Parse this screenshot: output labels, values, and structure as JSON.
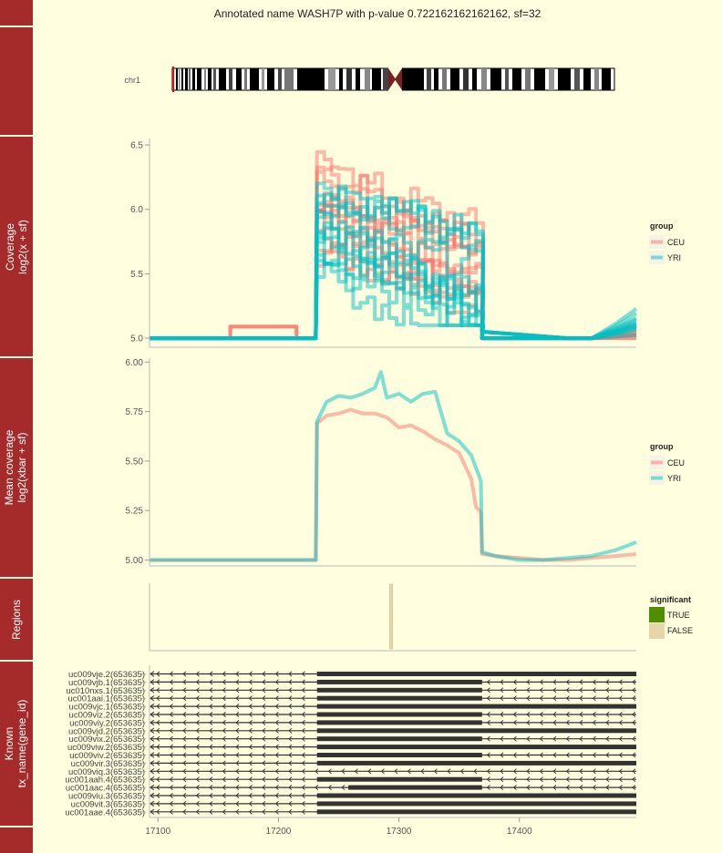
{
  "title": "Annotated name WASH7P with p-value 0.722162162162162, sf=32",
  "chromosome": {
    "label": "chr1"
  },
  "panels": {
    "coverage": {
      "strip": [
        "Coverage",
        "log2(x + sf)"
      ]
    },
    "mean": {
      "strip": [
        "Mean coverage",
        "log2(xbar + sf)"
      ]
    },
    "regions": {
      "strip": [
        "Regions"
      ]
    },
    "known": {
      "strip": [
        "Known",
        "tx_name(gene_id)"
      ]
    }
  },
  "legends": {
    "group": {
      "title": "group",
      "items": [
        {
          "label": "CEU",
          "color": "#f8766d"
        },
        {
          "label": "YRI",
          "color": "#00bfc4"
        }
      ]
    },
    "significant": {
      "title": "significant",
      "items": [
        {
          "label": "TRUE",
          "color": "#4d8f00"
        },
        {
          "label": "FALSE",
          "color": "#e8d5a8"
        }
      ]
    }
  },
  "colors": {
    "strip": "#a52a2a",
    "background": "#fffedf",
    "CEU": "#f8766d",
    "YRI": "#00bfc4"
  },
  "chart_data": [
    {
      "type": "line",
      "panel": "Coverage",
      "xlabel": "",
      "ylabel": "log2(x + sf)",
      "xlim": [
        17093,
        17497
      ],
      "ylim": [
        4.93,
        6.55
      ],
      "yticks": [
        "5.0",
        "5.5",
        "6.0",
        "6.5"
      ],
      "series_groups": [
        {
          "name": "CEU",
          "count": 12,
          "value_ranges": {
            "before": [
              5.0,
              5.09
            ],
            "region_17232_17369": [
              5.2,
              6.5
            ],
            "after": [
              5.0,
              5.1
            ]
          }
        },
        {
          "name": "YRI",
          "count": 12,
          "value_ranges": {
            "before": [
              5.0,
              5.0
            ],
            "region_17232_17369": [
              5.1,
              6.3
            ],
            "after": [
              5.0,
              5.25
            ]
          }
        }
      ]
    },
    {
      "type": "line",
      "panel": "Mean coverage",
      "xlabel": "",
      "ylabel": "log2(xbar + sf)",
      "xlim": [
        17093,
        17497
      ],
      "ylim": [
        4.97,
        6.02
      ],
      "yticks": [
        "5.00",
        "5.25",
        "5.50",
        "5.75",
        "6.00"
      ],
      "series": [
        {
          "name": "CEU",
          "x": [
            17093,
            17231,
            17232,
            17240,
            17250,
            17260,
            17270,
            17280,
            17290,
            17300,
            17310,
            17320,
            17330,
            17340,
            17350,
            17360,
            17364,
            17368,
            17369,
            17380,
            17400,
            17420,
            17440,
            17460,
            17480,
            17497
          ],
          "y": [
            5.0,
            5.0,
            5.69,
            5.73,
            5.74,
            5.76,
            5.74,
            5.74,
            5.72,
            5.67,
            5.68,
            5.65,
            5.61,
            5.58,
            5.54,
            5.41,
            5.27,
            5.24,
            5.03,
            5.02,
            5.01,
            5.0,
            5.0,
            5.01,
            5.02,
            5.03
          ]
        },
        {
          "name": "YRI",
          "x": [
            17093,
            17231,
            17232,
            17240,
            17250,
            17260,
            17270,
            17280,
            17285,
            17290,
            17300,
            17310,
            17320,
            17330,
            17340,
            17350,
            17360,
            17368,
            17369,
            17380,
            17400,
            17420,
            17440,
            17460,
            17480,
            17497
          ],
          "y": [
            5.0,
            5.0,
            5.7,
            5.8,
            5.83,
            5.82,
            5.84,
            5.87,
            5.95,
            5.82,
            5.84,
            5.8,
            5.84,
            5.85,
            5.64,
            5.6,
            5.53,
            5.4,
            5.04,
            5.02,
            5.0,
            5.0,
            5.01,
            5.02,
            5.05,
            5.09
          ]
        }
      ]
    },
    {
      "type": "bar",
      "panel": "Regions",
      "regions": [
        {
          "start": 17293,
          "end": 17294,
          "significant": "FALSE"
        }
      ]
    },
    {
      "type": "table",
      "panel": "Known",
      "xlim": [
        17093,
        17497
      ],
      "xticks": [
        17100,
        17200,
        17300,
        17400
      ],
      "transcripts": [
        {
          "name": "uc009vje.2(653635)",
          "thick": [
            [
              17232,
              17497
            ]
          ]
        },
        {
          "name": "uc009vjb.1(653635)",
          "thick": [
            [
              17232,
              17369
            ]
          ]
        },
        {
          "name": "uc010nxs.1(653635)",
          "thick": [
            [
              17232,
              17369
            ]
          ]
        },
        {
          "name": "uc001aai.1(653635)",
          "thick": [
            [
              17232,
              17369
            ]
          ]
        },
        {
          "name": "uc009vjc.1(653635)",
          "thick": [
            [
              17232,
              17497
            ]
          ]
        },
        {
          "name": "uc009viz.2(653635)",
          "thick": [
            [
              17232,
              17369
            ]
          ]
        },
        {
          "name": "uc009viy.2(653635)",
          "thick": [
            [
              17232,
              17369
            ]
          ]
        },
        {
          "name": "uc009vjd.2(653635)",
          "thick": [
            [
              17232,
              17497
            ]
          ]
        },
        {
          "name": "uc009vix.2(653635)",
          "thick": [
            [
              17232,
              17369
            ]
          ]
        },
        {
          "name": "uc009viw.2(653635)",
          "thick": [
            [
              17232,
              17497
            ]
          ]
        },
        {
          "name": "uc009viv.2(653635)",
          "thick": [
            [
              17232,
              17369
            ]
          ]
        },
        {
          "name": "uc009vir.3(653635)",
          "thick": [
            [
              17232,
              17497
            ]
          ]
        },
        {
          "name": "uc009viq.3(653635)",
          "thick": []
        },
        {
          "name": "uc001aah.4(653635)",
          "thick": [
            [
              17232,
              17369
            ]
          ]
        },
        {
          "name": "uc001aac.4(653635)",
          "thick": [
            [
              17258,
              17369
            ]
          ]
        },
        {
          "name": "uc009viu.3(653635)",
          "thick": [
            [
              17232,
              17497
            ]
          ]
        },
        {
          "name": "uc009vit.3(653635)",
          "thick": [
            [
              17232,
              17497
            ]
          ]
        },
        {
          "name": "uc001aae.4(653635)",
          "thick": [
            [
              17232,
              17497
            ]
          ]
        }
      ]
    }
  ]
}
